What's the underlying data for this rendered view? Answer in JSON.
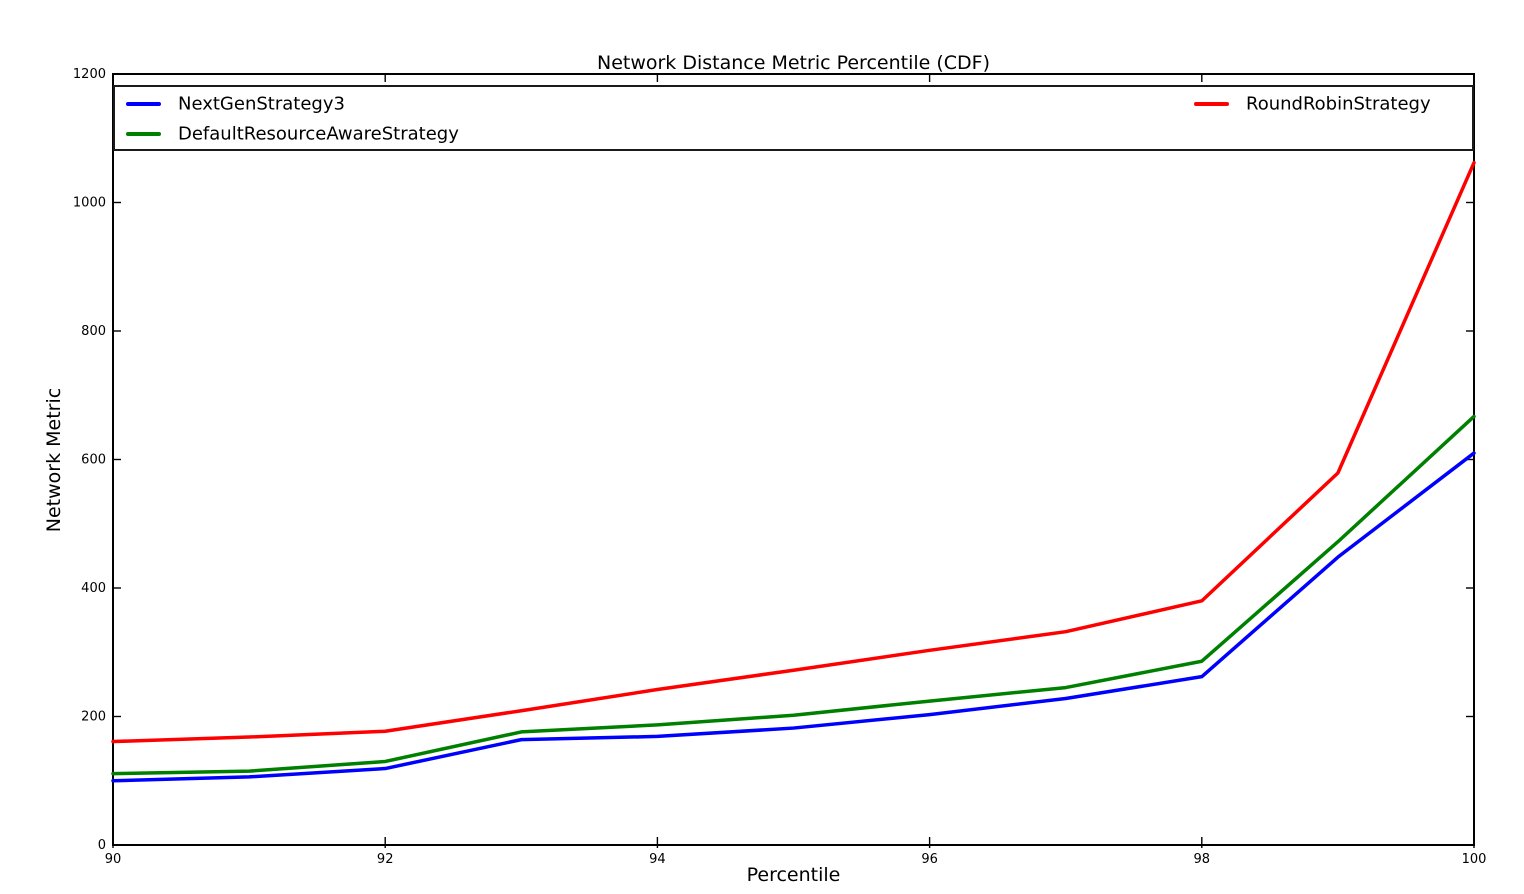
{
  "chart_data": {
    "type": "line",
    "title": "Network Distance Metric Percentile (CDF)",
    "xlabel": "Percentile",
    "ylabel": "Network Metric",
    "xlim": [
      90,
      100
    ],
    "ylim": [
      0,
      1200
    ],
    "xticks": [
      90,
      92,
      94,
      96,
      98,
      100
    ],
    "yticks": [
      0,
      200,
      400,
      600,
      800,
      1000,
      1200
    ],
    "grid": false,
    "legend_position": "top-inside, expanded full plot width, 2 columns",
    "x": [
      90,
      91,
      92,
      93,
      94,
      95,
      96,
      97,
      98,
      99,
      100
    ],
    "series": [
      {
        "name": "NextGenStrategy3",
        "color": "#0000ff",
        "values": [
          100,
          106,
          119,
          164,
          169,
          182,
          203,
          228,
          262,
          448,
          610
        ]
      },
      {
        "name": "DefaultResourceAwareStrategy",
        "color": "#008000",
        "values": [
          111,
          115,
          130,
          176,
          187,
          202,
          224,
          245,
          286,
          472,
          667
        ]
      },
      {
        "name": "RoundRobinStrategy",
        "color": "#ff0000",
        "values": [
          161,
          168,
          177,
          209,
          242,
          272,
          303,
          332,
          380,
          579,
          1062
        ]
      }
    ]
  },
  "colors": {
    "axes": "#000000",
    "text": "#000000",
    "background": "#ffffff",
    "legend_border": "#1a1a1a"
  }
}
